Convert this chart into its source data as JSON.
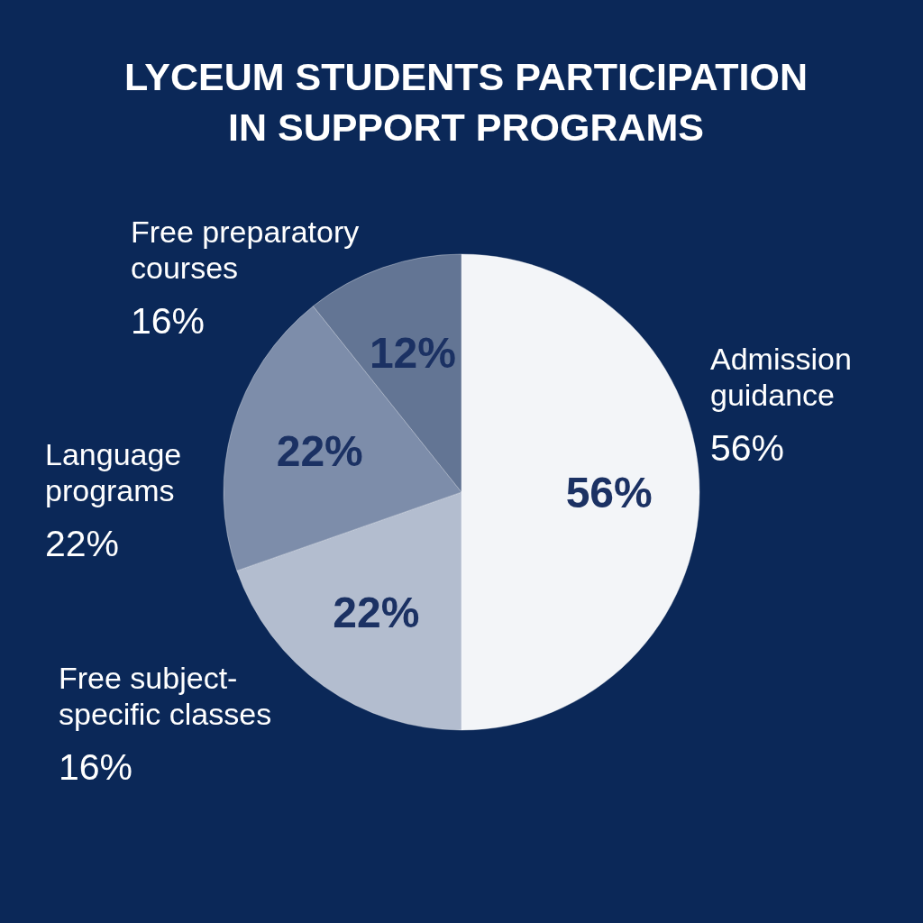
{
  "chart_data": {
    "type": "pie",
    "title": "LYCEUM STUDENTS PARTICIPATION IN SUPPORT PROGRAMS",
    "categories": [
      "Admission guidance",
      "Free subject-specific classes",
      "Language programs",
      "Free preparatory courses"
    ],
    "values": [
      56,
      22,
      22,
      12
    ],
    "colors": [
      "#f3f5f8",
      "#b3bdcf",
      "#7d8daa",
      "#637594"
    ],
    "value_labels": [
      "56%",
      "22%",
      "22%",
      "12%"
    ],
    "annotations": [
      "56%",
      "16%",
      "22%",
      "16%"
    ]
  }
}
